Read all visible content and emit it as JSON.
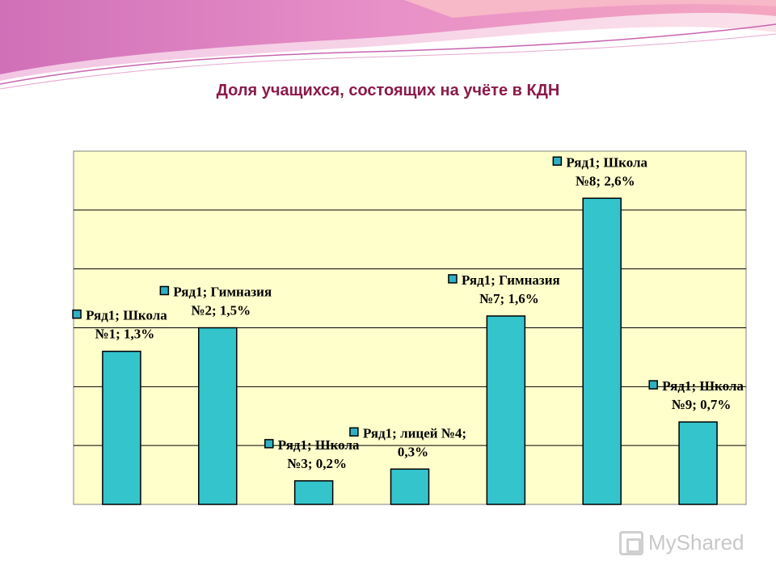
{
  "chart_data": {
    "type": "bar",
    "title": "Доля учащихся, состоящих на учёте в КДН",
    "categories": [
      "Школа №1",
      "Гимназия №2",
      "Школа №3",
      "лицей №4",
      "Гимназия №7",
      "Школа №8",
      "Школа №9"
    ],
    "series": [
      {
        "name": "Ряд1",
        "values": [
          1.3,
          1.5,
          0.2,
          0.3,
          1.6,
          2.6,
          0.7
        ]
      }
    ],
    "data_labels": [
      [
        "Ряд1; Школа",
        "№1; 1,3%"
      ],
      [
        "Ряд1; Гимназия",
        "№2; 1,5%"
      ],
      [
        "Ряд1; Школа",
        "№3; 0,2%"
      ],
      [
        "Ряд1; лицей №4;",
        "0,3%"
      ],
      [
        "Ряд1; Гимназия",
        "№7; 1,6%"
      ],
      [
        "Ряд1; Школа",
        "№8; 2,6%"
      ],
      [
        "Ряд1; Школа",
        "№9; 0,7%"
      ]
    ],
    "ylim": [
      0,
      3
    ],
    "ytick_step": 0.5,
    "grid": true,
    "legend": "none",
    "colors": {
      "bar_fill": "#33c4cc",
      "bar_stroke": "#000000",
      "plot_background": "#ffffcc",
      "gridline": "#000000",
      "title": "#8b1a4a",
      "marker_fill": "#2fb0c4"
    }
  },
  "watermark": {
    "text": "MyShared",
    "icon": "myshared-logo-icon"
  }
}
